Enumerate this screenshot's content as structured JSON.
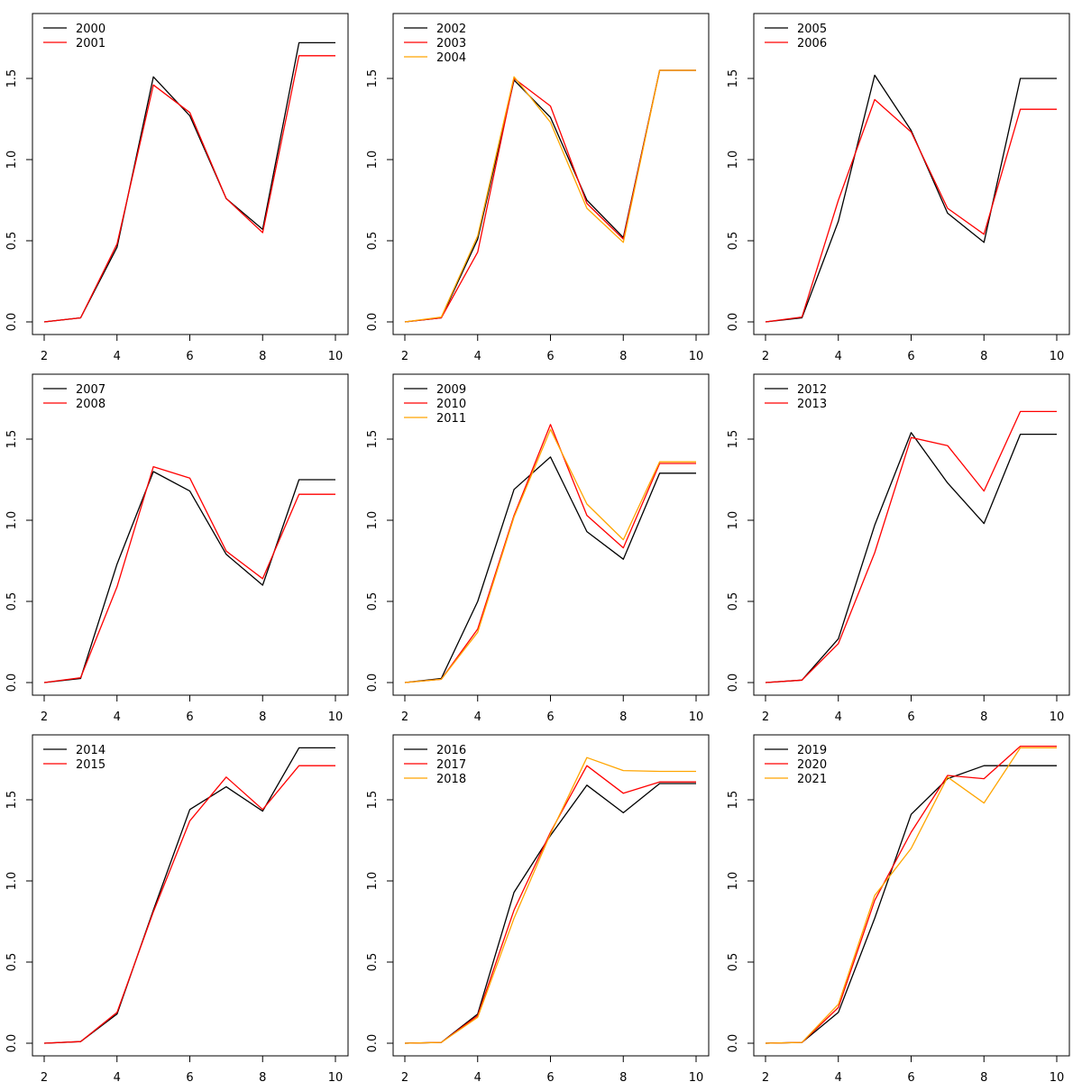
{
  "chart_data": [
    {
      "type": "line",
      "x": [
        2,
        3,
        4,
        5,
        6,
        7,
        8,
        9,
        10
      ],
      "xlim": [
        2,
        10
      ],
      "ylim": [
        0,
        1.8
      ],
      "xticks": [
        "2",
        "4",
        "6",
        "8",
        "10"
      ],
      "yticks": [
        "0.0",
        "0.5",
        "1.0",
        "1.5"
      ],
      "legend_position": "top-left",
      "series": [
        {
          "name": "2000",
          "color": "#000000",
          "values": [
            0.0,
            0.025,
            0.46,
            1.51,
            1.27,
            0.76,
            0.57,
            1.72,
            1.72
          ]
        },
        {
          "name": "2001",
          "color": "#ff0000",
          "values": [
            0.0,
            0.025,
            0.48,
            1.46,
            1.29,
            0.76,
            0.55,
            1.64,
            1.64
          ]
        }
      ]
    },
    {
      "type": "line",
      "x": [
        2,
        3,
        4,
        5,
        6,
        7,
        8,
        9,
        10
      ],
      "xlim": [
        2,
        10
      ],
      "ylim": [
        0,
        1.8
      ],
      "xticks": [
        "2",
        "4",
        "6",
        "8",
        "10"
      ],
      "yticks": [
        "0.0",
        "0.5",
        "1.0",
        "1.5"
      ],
      "legend_position": "top-left",
      "series": [
        {
          "name": "2002",
          "color": "#000000",
          "values": [
            0.0,
            0.025,
            0.51,
            1.49,
            1.26,
            0.75,
            0.52,
            1.55,
            1.55
          ]
        },
        {
          "name": "2003",
          "color": "#ff0000",
          "values": [
            0.0,
            0.025,
            0.43,
            1.5,
            1.33,
            0.73,
            0.51,
            1.55,
            1.55
          ]
        },
        {
          "name": "2004",
          "color": "#ffa500",
          "values": [
            0.0,
            0.03,
            0.53,
            1.51,
            1.23,
            0.7,
            0.49,
            1.55,
            1.55
          ]
        }
      ]
    },
    {
      "type": "line",
      "x": [
        2,
        3,
        4,
        5,
        6,
        7,
        8,
        9,
        10
      ],
      "xlim": [
        2,
        10
      ],
      "ylim": [
        0,
        1.8
      ],
      "xticks": [
        "2",
        "4",
        "6",
        "8",
        "10"
      ],
      "yticks": [
        "0.0",
        "0.5",
        "1.0",
        "1.5"
      ],
      "legend_position": "top-left",
      "series": [
        {
          "name": "2005",
          "color": "#000000",
          "values": [
            0.0,
            0.025,
            0.62,
            1.52,
            1.18,
            0.67,
            0.49,
            1.5,
            1.5
          ]
        },
        {
          "name": "2006",
          "color": "#ff0000",
          "values": [
            0.0,
            0.03,
            0.75,
            1.37,
            1.17,
            0.7,
            0.54,
            1.31,
            1.31
          ]
        }
      ]
    },
    {
      "type": "line",
      "x": [
        2,
        3,
        4,
        5,
        6,
        7,
        8,
        9,
        10
      ],
      "xlim": [
        2,
        10
      ],
      "ylim": [
        0,
        1.8
      ],
      "xticks": [
        "2",
        "4",
        "6",
        "8",
        "10"
      ],
      "yticks": [
        "0.0",
        "0.5",
        "1.0",
        "1.5"
      ],
      "legend_position": "top-left",
      "series": [
        {
          "name": "2007",
          "color": "#000000",
          "values": [
            0.0,
            0.025,
            0.73,
            1.3,
            1.18,
            0.79,
            0.6,
            1.25,
            1.25
          ]
        },
        {
          "name": "2008",
          "color": "#ff0000",
          "values": [
            0.0,
            0.03,
            0.59,
            1.33,
            1.26,
            0.81,
            0.64,
            1.16,
            1.16
          ]
        }
      ]
    },
    {
      "type": "line",
      "x": [
        2,
        3,
        4,
        5,
        6,
        7,
        8,
        9,
        10
      ],
      "xlim": [
        2,
        10
      ],
      "ylim": [
        0,
        1.8
      ],
      "xticks": [
        "2",
        "4",
        "6",
        "8",
        "10"
      ],
      "yticks": [
        "0.0",
        "0.5",
        "1.0",
        "1.5"
      ],
      "legend_position": "top-left",
      "series": [
        {
          "name": "2009",
          "color": "#000000",
          "values": [
            0.0,
            0.025,
            0.5,
            1.19,
            1.39,
            0.93,
            0.76,
            1.29,
            1.29
          ]
        },
        {
          "name": "2010",
          "color": "#ff0000",
          "values": [
            0.0,
            0.02,
            0.33,
            1.03,
            1.59,
            1.03,
            0.83,
            1.35,
            1.35
          ]
        },
        {
          "name": "2011",
          "color": "#ffa500",
          "values": [
            0.0,
            0.02,
            0.31,
            1.02,
            1.56,
            1.1,
            0.88,
            1.36,
            1.36
          ]
        }
      ]
    },
    {
      "type": "line",
      "x": [
        2,
        3,
        4,
        5,
        6,
        7,
        8,
        9,
        10
      ],
      "xlim": [
        2,
        10
      ],
      "ylim": [
        0,
        1.8
      ],
      "xticks": [
        "2",
        "4",
        "6",
        "8",
        "10"
      ],
      "yticks": [
        "0.0",
        "0.5",
        "1.0",
        "1.5"
      ],
      "legend_position": "top-left",
      "series": [
        {
          "name": "2012",
          "color": "#000000",
          "values": [
            0.0,
            0.015,
            0.27,
            0.97,
            1.54,
            1.23,
            0.98,
            1.53,
            1.53
          ]
        },
        {
          "name": "2013",
          "color": "#ff0000",
          "values": [
            0.0,
            0.015,
            0.24,
            0.8,
            1.51,
            1.46,
            1.18,
            1.67,
            1.67
          ]
        }
      ]
    },
    {
      "type": "line",
      "x": [
        2,
        3,
        4,
        5,
        6,
        7,
        8,
        9,
        10
      ],
      "xlim": [
        2,
        10
      ],
      "ylim": [
        0,
        1.8
      ],
      "xticks": [
        "2",
        "4",
        "6",
        "8",
        "10"
      ],
      "yticks": [
        "0.0",
        "0.5",
        "1.0",
        "1.5"
      ],
      "legend_position": "top-left",
      "series": [
        {
          "name": "2014",
          "color": "#000000",
          "values": [
            0.0,
            0.01,
            0.18,
            0.82,
            1.44,
            1.58,
            1.43,
            1.82,
            1.82
          ]
        },
        {
          "name": "2015",
          "color": "#ff0000",
          "values": [
            0.0,
            0.01,
            0.19,
            0.81,
            1.37,
            1.64,
            1.44,
            1.71,
            1.71
          ]
        }
      ]
    },
    {
      "type": "line",
      "x": [
        2,
        3,
        4,
        5,
        6,
        7,
        8,
        9,
        10
      ],
      "xlim": [
        2,
        10
      ],
      "ylim": [
        0,
        1.8
      ],
      "xticks": [
        "2",
        "4",
        "6",
        "8",
        "10"
      ],
      "yticks": [
        "0.0",
        "0.5",
        "1.0",
        "1.5"
      ],
      "legend_position": "top-left",
      "series": [
        {
          "name": "2016",
          "color": "#000000",
          "values": [
            0.0,
            0.005,
            0.18,
            0.93,
            1.28,
            1.59,
            1.42,
            1.6,
            1.6
          ]
        },
        {
          "name": "2017",
          "color": "#ff0000",
          "values": [
            0.0,
            0.005,
            0.17,
            0.82,
            1.3,
            1.71,
            1.54,
            1.61,
            1.61
          ]
        },
        {
          "name": "2018",
          "color": "#ffa500",
          "values": [
            0.0,
            0.005,
            0.16,
            0.77,
            1.29,
            1.76,
            1.68,
            1.675,
            1.675
          ]
        }
      ]
    },
    {
      "type": "line",
      "x": [
        2,
        3,
        4,
        5,
        6,
        7,
        8,
        9,
        10
      ],
      "xlim": [
        2,
        10
      ],
      "ylim": [
        0,
        1.8
      ],
      "xticks": [
        "2",
        "4",
        "6",
        "8",
        "10"
      ],
      "yticks": [
        "0.0",
        "0.5",
        "1.0",
        "1.5"
      ],
      "legend_position": "top-left",
      "series": [
        {
          "name": "2019",
          "color": "#000000",
          "values": [
            0.0,
            0.005,
            0.19,
            0.77,
            1.41,
            1.63,
            1.71,
            1.71,
            1.71
          ]
        },
        {
          "name": "2020",
          "color": "#ff0000",
          "values": [
            0.0,
            0.005,
            0.22,
            0.88,
            1.3,
            1.65,
            1.63,
            1.83,
            1.83
          ]
        },
        {
          "name": "2021",
          "color": "#ffa500",
          "values": [
            0.0,
            0.005,
            0.24,
            0.91,
            1.2,
            1.64,
            1.48,
            1.82,
            1.82
          ]
        }
      ]
    }
  ]
}
